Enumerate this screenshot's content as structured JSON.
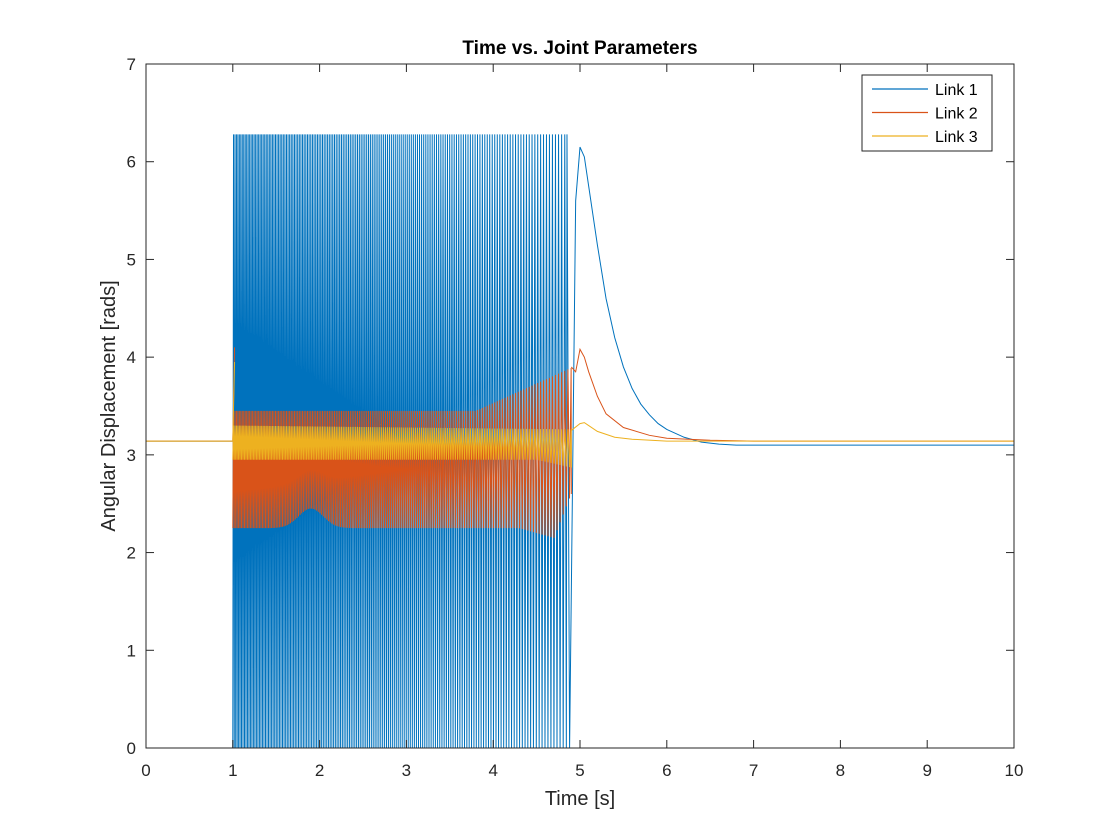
{
  "chart_data": {
    "type": "line",
    "title": "Time vs. Joint Parameters",
    "xlabel": "Time [s]",
    "ylabel": "Angular Displacement [rads]",
    "xlim": [
      0,
      10
    ],
    "ylim": [
      0,
      7
    ],
    "x_ticks": [
      "0",
      "1",
      "2",
      "3",
      "4",
      "5",
      "6",
      "7",
      "8",
      "9",
      "10"
    ],
    "y_ticks": [
      "0",
      "1",
      "2",
      "3",
      "4",
      "5",
      "6",
      "7"
    ],
    "grid": false,
    "legend_position": "top-right",
    "series": [
      {
        "name": "Link 1",
        "color": "#0072BD",
        "x": [
          0,
          1.0,
          1.005,
          4.85,
          4.88,
          4.95,
          5.0,
          5.05,
          5.1,
          5.2,
          5.3,
          5.4,
          5.5,
          5.6,
          5.7,
          5.8,
          5.9,
          6.0,
          6.2,
          6.4,
          6.6,
          6.8,
          7.0,
          7.5,
          8.0,
          9.0,
          10.0
        ],
        "y": [
          3.14,
          3.14,
          6.28,
          6.28,
          0.0,
          5.6,
          6.15,
          6.05,
          5.75,
          5.15,
          4.6,
          4.2,
          3.9,
          3.68,
          3.52,
          3.41,
          3.32,
          3.26,
          3.18,
          3.13,
          3.11,
          3.1,
          3.1,
          3.1,
          3.1,
          3.1,
          3.1
        ]
      },
      {
        "name": "Link 2",
        "color": "#D95319",
        "x": [
          0,
          1.0,
          1.02,
          2.0,
          3.0,
          4.0,
          4.5,
          4.9,
          4.95,
          5.0,
          5.05,
          5.1,
          5.2,
          5.3,
          5.5,
          5.8,
          6.0,
          6.5,
          7.0,
          8.0,
          9.0,
          10.0
        ],
        "y": [
          3.14,
          3.14,
          4.1,
          3.55,
          3.45,
          3.5,
          3.65,
          3.9,
          3.85,
          4.08,
          4.0,
          3.85,
          3.6,
          3.42,
          3.28,
          3.2,
          3.17,
          3.15,
          3.14,
          3.14,
          3.14,
          3.14
        ]
      },
      {
        "name": "Link 3",
        "color": "#EDB120",
        "x": [
          0,
          1.0,
          1.02,
          2.0,
          3.0,
          4.0,
          4.9,
          5.0,
          5.05,
          5.1,
          5.2,
          5.4,
          5.6,
          6.0,
          7.0,
          8.0,
          9.0,
          10.0
        ],
        "y": [
          3.14,
          3.14,
          3.95,
          3.3,
          3.28,
          3.26,
          3.25,
          3.32,
          3.33,
          3.3,
          3.24,
          3.18,
          3.16,
          3.14,
          3.14,
          3.14,
          3.14,
          3.14
        ]
      }
    ]
  }
}
